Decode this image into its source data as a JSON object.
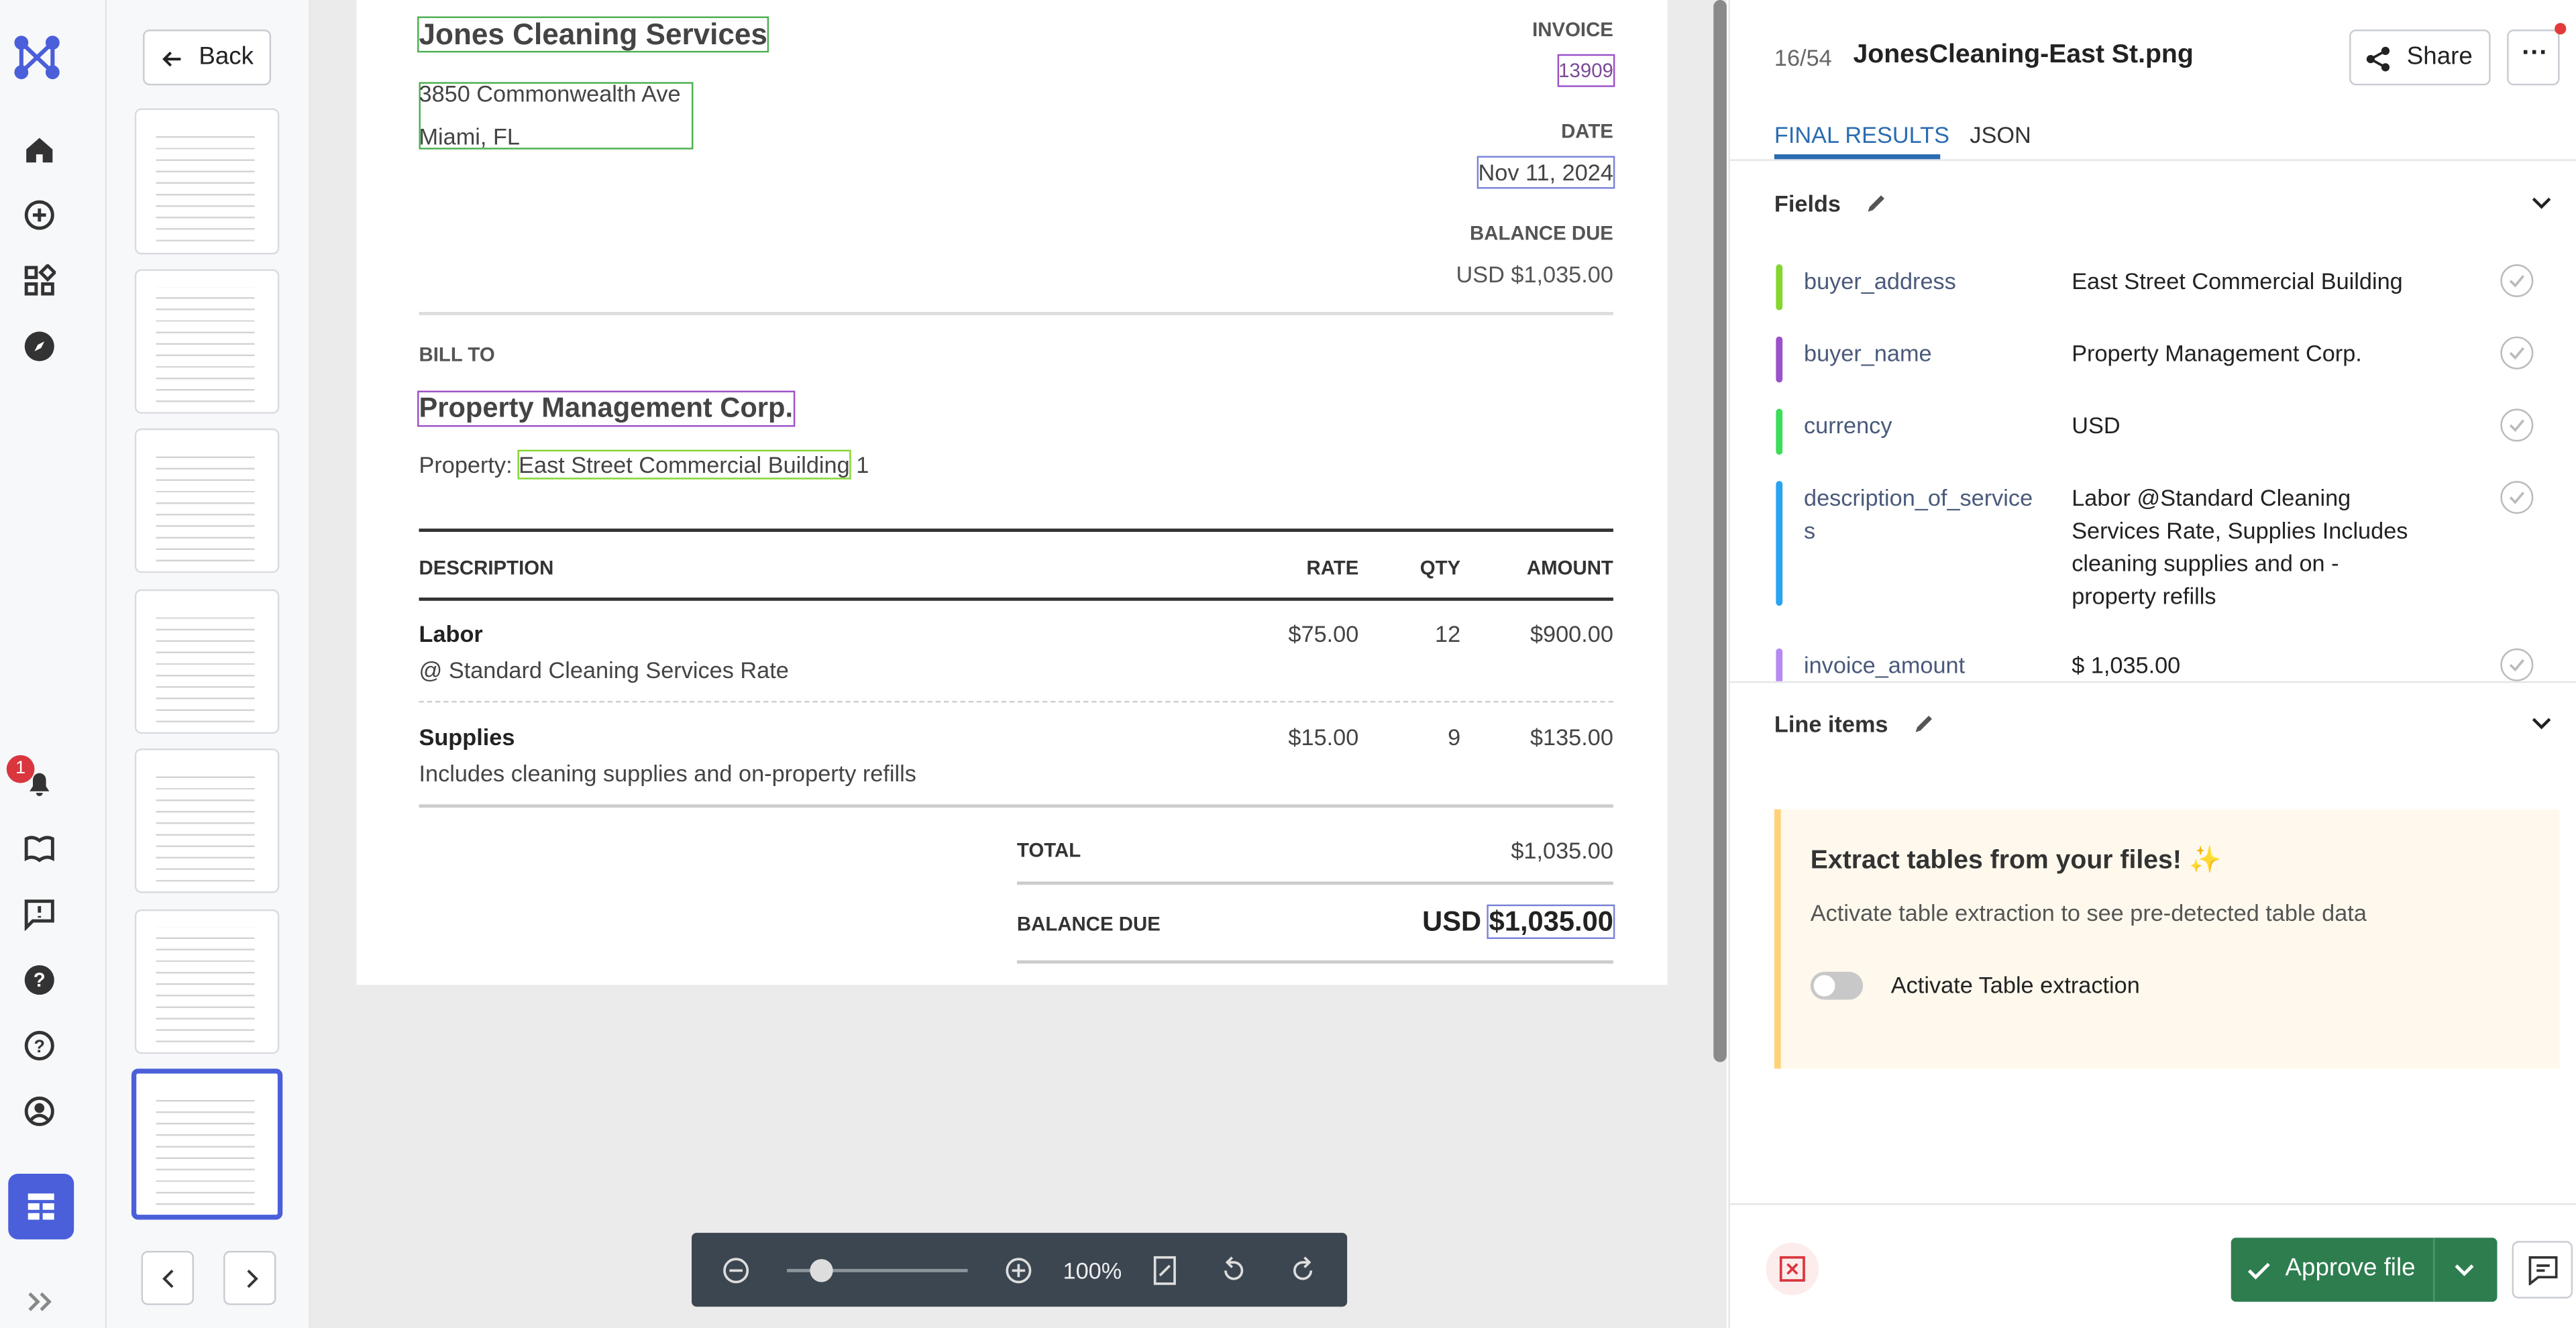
{
  "nav": {
    "notification_count": "1"
  },
  "sidebar": {
    "back": "Back"
  },
  "invoice": {
    "company": "Jones Cleaning Services",
    "address_lines": [
      "3850 Commonwealth Ave",
      "Miami, FL"
    ],
    "invoice_label": "INVOICE",
    "invoice_number": "13909",
    "date_label": "DATE",
    "date": "Nov 11, 2024",
    "balance_due_label": "BALANCE DUE",
    "balance_due": "USD $1,035.00",
    "bill_to_label": "BILL TO",
    "buyer": "Property Management Corp.",
    "property_label": "Property:",
    "property": "East Street Commercial Building",
    "property_suffix": "1",
    "table": {
      "headers": [
        "DESCRIPTION",
        "RATE",
        "QTY",
        "AMOUNT"
      ],
      "rows": [
        {
          "item": "Labor",
          "detail": "@ Standard Cleaning Services Rate",
          "rate": "$75.00",
          "qty": "12",
          "amount": "$900.00"
        },
        {
          "item": "Supplies",
          "detail": "Includes cleaning supplies and on-property refills",
          "rate": "$15.00",
          "qty": "9",
          "amount": "$135.00"
        }
      ]
    },
    "total_label": "TOTAL",
    "total": "$1,035.00",
    "footer_balance_label": "BALANCE DUE",
    "footer_currency": "USD",
    "footer_balance": "$1,035.00"
  },
  "toolbar": {
    "zoom": "100%"
  },
  "panel": {
    "counter": "16/54",
    "file_name": "JonesCleaning-East St.png",
    "share": "Share",
    "tabs": [
      "FINAL RESULTS",
      "JSON"
    ],
    "fields_title": "Fields",
    "fields": [
      {
        "key": "buyer_address",
        "value": "East Street Commercial Building",
        "color": "#84d630"
      },
      {
        "key": "buyer_name",
        "value": "Property Management Corp.",
        "color": "#9b51c8"
      },
      {
        "key": "currency",
        "value": "USD",
        "color": "#3ddc5a"
      },
      {
        "key": "description_of_services",
        "value": "Labor @Standard Cleaning Services Rate, Supplies Includes cleaning supplies and on - property refills",
        "color": "#2aa3f0"
      },
      {
        "key": "invoice_amount",
        "value": "$ 1,035.00",
        "color": "#b68bf0"
      }
    ],
    "line_items_title": "Line items",
    "promo": {
      "title": "Extract tables from your files! ✨",
      "text": "Activate table extraction to see pre-detected table data",
      "toggle": "Activate Table extraction"
    },
    "approve": "Approve file"
  }
}
